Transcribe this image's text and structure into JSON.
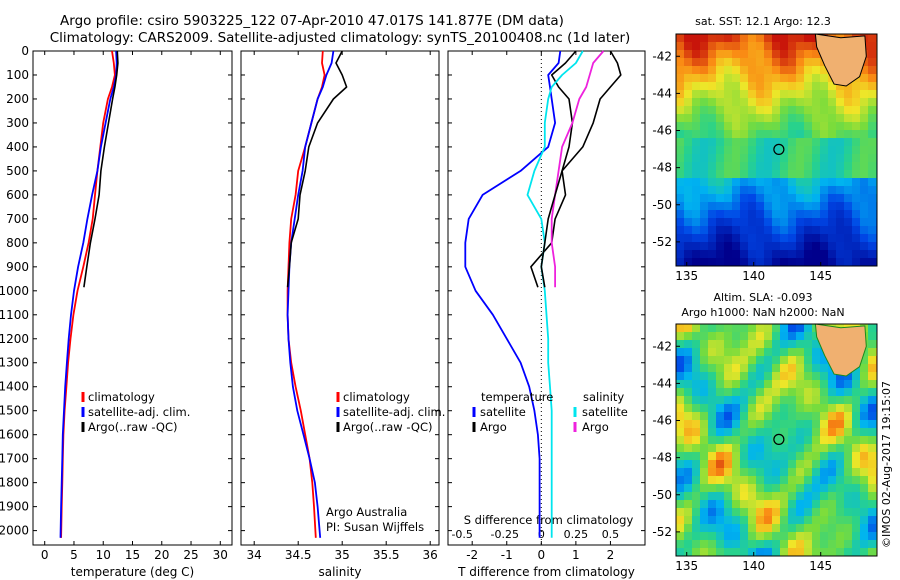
{
  "header": {
    "title_line1": "Argo profile: csiro 5903225_122 07-Apr-2010 47.017S 141.877E (DM data)",
    "title_line2": "Climatology: CARS2009. Satellite-adjusted climatology: synTS_20100408.nc (1d later)"
  },
  "colors": {
    "climatology": "#ff0000",
    "satellite": "#0000ff",
    "argo": "#000000",
    "sat_salinity": "#00e5ee",
    "argo_salinity": "#ee22dd"
  },
  "depth_axis": {
    "ticks": [
      0,
      100,
      200,
      300,
      400,
      500,
      600,
      700,
      800,
      900,
      1000,
      1100,
      1200,
      1300,
      1400,
      1500,
      1600,
      1700,
      1800,
      1900,
      2000
    ],
    "range": [
      0,
      2060
    ],
    "reversed": true
  },
  "chart_data": [
    {
      "type": "line",
      "panel": "temperature",
      "xlabel": "temperature (deg C)",
      "xlim": [
        -2,
        32
      ],
      "xticks": [
        0,
        5,
        10,
        15,
        20,
        25,
        30
      ],
      "legend": {
        "placement": "lower-middle",
        "entries": [
          "climatology",
          "satellite-adj. clim.",
          "Argo(..raw -QC)"
        ]
      },
      "series": [
        {
          "name": "climatology",
          "color": "#ff0000",
          "x": [
            11.5,
            11.8,
            12.0,
            11.5,
            10.8,
            10.0,
            9.5,
            9.0,
            8.6,
            8.2,
            7.5,
            6.6,
            5.6,
            4.9,
            4.4,
            4.0,
            3.7,
            3.4,
            3.2,
            3.1,
            3.0,
            2.9,
            2.8
          ],
          "y": [
            0,
            50,
            100,
            150,
            200,
            300,
            400,
            500,
            600,
            700,
            800,
            900,
            1000,
            1100,
            1200,
            1300,
            1400,
            1500,
            1600,
            1700,
            1800,
            1900,
            2030
          ]
        },
        {
          "name": "satellite-adj. clim.",
          "color": "#0000ff",
          "x": [
            12.2,
            12.3,
            12.2,
            11.8,
            11.2,
            10.4,
            9.6,
            9.0,
            8.1,
            7.3,
            6.6,
            5.7,
            5.0,
            4.5,
            4.1,
            3.8,
            3.5,
            3.3,
            3.1,
            3.0,
            2.9,
            2.8,
            2.7
          ],
          "y": [
            0,
            50,
            100,
            150,
            200,
            300,
            400,
            500,
            600,
            700,
            800,
            900,
            1000,
            1100,
            1200,
            1300,
            1400,
            1500,
            1600,
            1700,
            1800,
            1900,
            2030
          ]
        },
        {
          "name": "Argo(..raw -QC)",
          "color": "#000000",
          "x": [
            12.4,
            12.5,
            12.3,
            12.0,
            11.6,
            10.9,
            10.2,
            9.6,
            9.3,
            8.6,
            7.8,
            7.2,
            6.7
          ],
          "y": [
            0,
            50,
            100,
            150,
            200,
            300,
            400,
            500,
            600,
            700,
            800,
            900,
            985
          ]
        }
      ]
    },
    {
      "type": "line",
      "panel": "salinity",
      "xlabel": "salinity",
      "xlim": [
        33.85,
        36.1
      ],
      "xticks": [
        34,
        34.5,
        35,
        35.5,
        36
      ],
      "legend": {
        "placement": "lower-middle",
        "entries": [
          "climatology",
          "satellite-adj. clim.",
          "Argo(..raw -QC)"
        ]
      },
      "annotation": [
        "Argo Australia",
        "PI: Susan Wijffels"
      ],
      "series": [
        {
          "name": "climatology",
          "color": "#ff0000",
          "x": [
            34.78,
            34.77,
            34.8,
            34.77,
            34.72,
            34.65,
            34.58,
            34.5,
            34.47,
            34.42,
            34.4,
            34.39,
            34.38,
            34.38,
            34.39,
            34.42,
            34.47,
            34.53,
            34.58,
            34.63,
            34.66,
            34.68,
            34.7
          ],
          "y": [
            0,
            50,
            100,
            150,
            200,
            300,
            400,
            500,
            600,
            700,
            800,
            900,
            1000,
            1100,
            1200,
            1300,
            1400,
            1500,
            1600,
            1700,
            1800,
            1900,
            2030
          ]
        },
        {
          "name": "satellite-adj. clim.",
          "color": "#0000ff",
          "x": [
            34.9,
            34.88,
            34.82,
            34.78,
            34.72,
            34.65,
            34.58,
            34.55,
            34.5,
            34.46,
            34.42,
            34.4,
            34.39,
            34.38,
            34.39,
            34.41,
            34.44,
            34.49,
            34.56,
            34.63,
            34.69,
            34.72,
            34.75
          ],
          "y": [
            0,
            50,
            100,
            150,
            200,
            300,
            400,
            500,
            600,
            700,
            800,
            900,
            1000,
            1100,
            1200,
            1300,
            1400,
            1500,
            1600,
            1700,
            1800,
            1900,
            2030
          ]
        },
        {
          "name": "Argo(..raw -QC)",
          "color": "#000000",
          "x": [
            35.0,
            34.93,
            35.0,
            35.05,
            34.9,
            34.72,
            34.62,
            34.58,
            34.52,
            34.5,
            34.42,
            34.4,
            34.38
          ],
          "y": [
            0,
            50,
            100,
            150,
            200,
            300,
            400,
            500,
            600,
            700,
            800,
            900,
            985
          ]
        }
      ]
    },
    {
      "type": "line",
      "panel": "difference",
      "xlabel": "T difference from climatology",
      "xlabel_top": "S difference from climatology",
      "xlim": [
        -2.7,
        3.0
      ],
      "xticks": [
        -2,
        -1,
        0,
        1,
        2
      ],
      "xticks_salinity_labels": [
        "-0.5",
        "-0.25",
        "0",
        "0.25",
        "0.5"
      ],
      "legend": {
        "placement": "lower-middle",
        "headers": [
          "temperature",
          "salinity"
        ],
        "entries_left": [
          "satellite",
          "Argo"
        ],
        "entries_right": [
          "satellite",
          "Argo"
        ]
      },
      "series": [
        {
          "name": "temperature satellite",
          "color": "#0000ff",
          "x": [
            0.55,
            0.5,
            0.2,
            0.25,
            0.3,
            0.4,
            0.2,
            -0.6,
            -1.7,
            -2.1,
            -2.2,
            -2.2,
            -1.9,
            -1.4,
            -1.0,
            -0.6,
            -0.35,
            -0.2,
            -0.1,
            -0.05,
            -0.05,
            -0.05,
            -0.05
          ],
          "y": [
            0,
            50,
            100,
            150,
            200,
            300,
            400,
            500,
            600,
            700,
            800,
            900,
            1000,
            1100,
            1200,
            1300,
            1400,
            1500,
            1600,
            1700,
            1800,
            1900,
            2030
          ]
        },
        {
          "name": "temperature Argo",
          "color": "#000000",
          "x": [
            1.0,
            0.7,
            0.3,
            0.5,
            0.8,
            0.9,
            0.8,
            0.6,
            0.7,
            0.4,
            0.3,
            -0.3,
            -0.1
          ],
          "y": [
            0,
            50,
            100,
            150,
            200,
            300,
            400,
            500,
            600,
            700,
            800,
            900,
            985
          ]
        },
        {
          "name": "salinity satellite",
          "color": "#00e5ee",
          "x": [
            1.2,
            1.0,
            0.6,
            0.3,
            0.2,
            0.1,
            0.1,
            -0.2,
            -0.4,
            0.0,
            0.1,
            0.0,
            0.1,
            0.15,
            0.2,
            0.2,
            0.25,
            0.3,
            0.3,
            0.3,
            0.3,
            0.3,
            0.3
          ],
          "y": [
            0,
            50,
            100,
            150,
            200,
            300,
            400,
            500,
            600,
            700,
            800,
            900,
            1000,
            1100,
            1200,
            1300,
            1400,
            1500,
            1600,
            1700,
            1800,
            1900,
            2030
          ]
        },
        {
          "name": "salinity Argo",
          "color": "#ee22dd",
          "x": [
            1.8,
            1.5,
            1.4,
            1.3,
            1.1,
            0.9,
            0.6,
            0.5,
            0.4,
            0.3,
            0.3,
            0.4,
            0.4
          ],
          "y": [
            0,
            50,
            100,
            150,
            200,
            300,
            400,
            500,
            600,
            700,
            800,
            900,
            985
          ]
        },
        {
          "name": "total Argo minus climatology",
          "color": "#000000",
          "x": [
            2.0,
            2.2,
            2.3,
            2.0,
            1.7,
            1.5,
            1.2,
            0.6,
            0.4,
            0.2,
            0.1,
            0.0,
            0.1
          ],
          "y": [
            0,
            50,
            100,
            150,
            200,
            300,
            400,
            500,
            600,
            700,
            800,
            900,
            985
          ]
        }
      ]
    },
    {
      "type": "heatmap",
      "panel": "sst-map",
      "title": "sat. SST: 12.1  Argo: 12.3",
      "xlim": [
        134.2,
        149.2
      ],
      "ylim": [
        -53.3,
        -40.8
      ],
      "xticks": [
        135,
        140,
        145
      ],
      "yticks": [
        -42,
        -44,
        -46,
        -48,
        -50,
        -52
      ],
      "profile_marker": {
        "lon": 141.877,
        "lat": -47.017
      }
    },
    {
      "type": "heatmap",
      "panel": "sla-map",
      "title_line1": "Altim. SLA: -0.093",
      "title_line2": "Argo h1000: NaN h2000: NaN",
      "xlim": [
        134.2,
        149.2
      ],
      "ylim": [
        -53.3,
        -40.8
      ],
      "xticks": [
        135,
        140,
        145
      ],
      "yticks": [
        -42,
        -44,
        -46,
        -48,
        -50,
        -52
      ],
      "profile_marker": {
        "lon": 141.877,
        "lat": -47.017
      }
    }
  ],
  "footer": {
    "credit": "©IMOS 02-Aug-2017 19:15:07"
  }
}
